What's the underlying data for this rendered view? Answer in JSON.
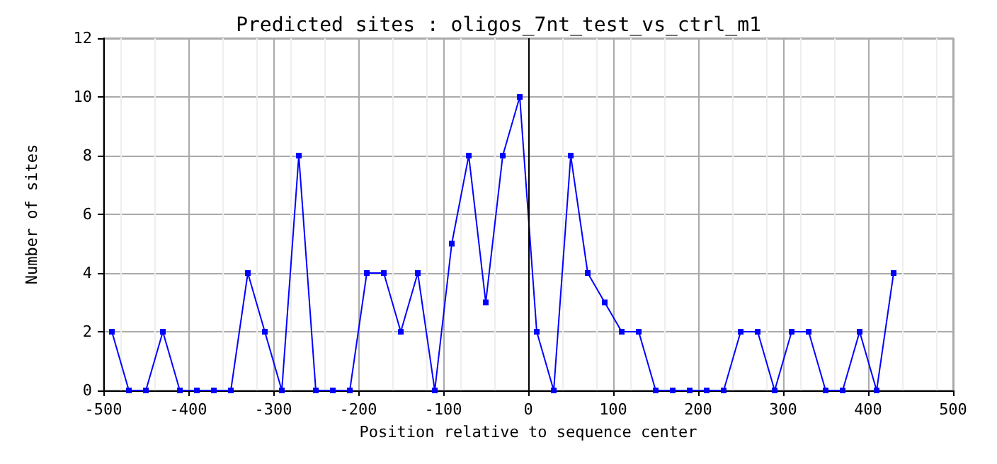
{
  "chart_data": {
    "type": "line",
    "title": "Predicted sites : oligos_7nt_test_vs_ctrl_m1",
    "xlabel": "Position relative to sequence center",
    "ylabel": "Number of sites",
    "x": [
      -490,
      -470,
      -450,
      -430,
      -410,
      -390,
      -370,
      -350,
      -330,
      -310,
      -290,
      -270,
      -250,
      -230,
      -210,
      -190,
      -170,
      -150,
      -130,
      -110,
      -90,
      -70,
      -50,
      -30,
      -10,
      10,
      30,
      50,
      70,
      90,
      110,
      130,
      150,
      170,
      190,
      210,
      230,
      250,
      270,
      290,
      310,
      330,
      350,
      370,
      390,
      410,
      430
    ],
    "series": [
      {
        "color": "#0000ff",
        "values": [
          2,
          0,
          0,
          2,
          0,
          0,
          0,
          0,
          4,
          2,
          0,
          8,
          0,
          0,
          0,
          4,
          4,
          2,
          4,
          0,
          5,
          8,
          3,
          8,
          10,
          2,
          0,
          8,
          4,
          3,
          2,
          2,
          0,
          0,
          0,
          0,
          0,
          2,
          2,
          0,
          2,
          2,
          0,
          0,
          2,
          0,
          4
        ]
      }
    ],
    "xlim": [
      -500,
      500
    ],
    "xticks": [
      -500,
      -400,
      -300,
      -200,
      -100,
      0,
      100,
      200,
      300,
      400,
      500
    ],
    "ylim": [
      0,
      12
    ],
    "yticks": [
      0,
      2,
      4,
      6,
      8,
      10,
      12
    ],
    "ref_lines": [
      {
        "axis": "x",
        "value": 0,
        "color": "#000000"
      }
    ],
    "grid": true,
    "marker": "square",
    "line_style": "solid"
  }
}
